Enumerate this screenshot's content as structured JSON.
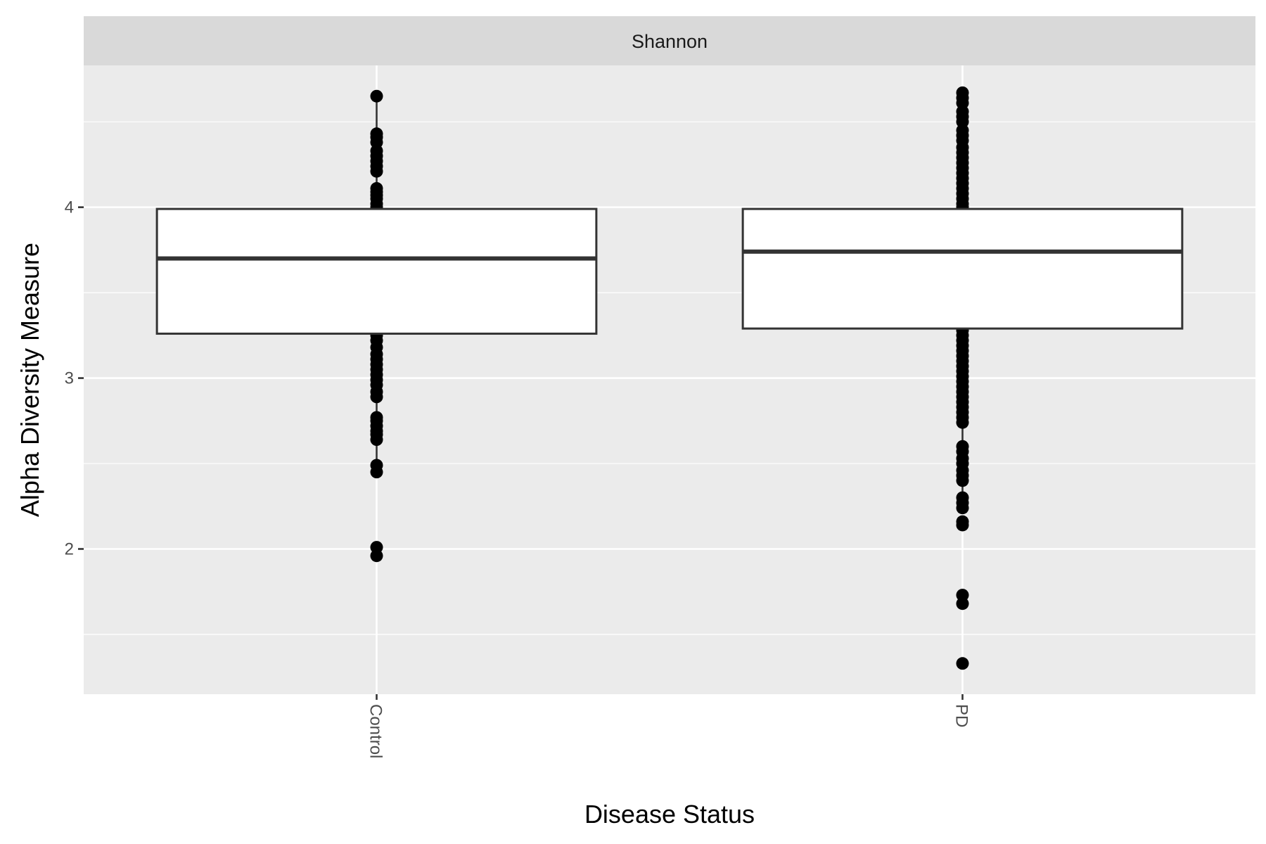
{
  "chart_data": {
    "type": "box",
    "facet_label": "Shannon",
    "xlabel": "Disease Status",
    "ylabel": "Alpha Diversity Measure",
    "categories": [
      "Control",
      "PD"
    ],
    "ylim": [
      1.15,
      4.83
    ],
    "y_major_ticks": [
      2,
      3,
      4
    ],
    "y_minor_ticks": [
      1.5,
      2.5,
      3.5,
      4.5
    ],
    "grid": true,
    "boxes": [
      {
        "category": "Control",
        "q1": 3.26,
        "median": 3.7,
        "q3": 3.99,
        "whisker_low": 2.45,
        "whisker_high": 4.65,
        "points": [
          4.65,
          4.43,
          4.41,
          4.38,
          4.33,
          4.3,
          4.27,
          4.24,
          4.21,
          4.11,
          4.09,
          4.07,
          4.05,
          4.02,
          4.0,
          3.25,
          3.22,
          3.18,
          3.14,
          3.11,
          3.08,
          3.05,
          3.02,
          2.99,
          2.96,
          2.92,
          2.89,
          2.77,
          2.75,
          2.72,
          2.69,
          2.67,
          2.64,
          2.49,
          2.45,
          2.01,
          1.96
        ]
      },
      {
        "category": "PD",
        "q1": 3.29,
        "median": 3.74,
        "q3": 3.99,
        "whisker_low": 2.23,
        "whisker_high": 4.67,
        "points": [
          4.67,
          4.64,
          4.61,
          4.56,
          4.53,
          4.5,
          4.45,
          4.42,
          4.39,
          4.35,
          4.32,
          4.29,
          4.26,
          4.23,
          4.2,
          4.17,
          4.14,
          4.11,
          4.08,
          4.05,
          4.02,
          4.0,
          3.28,
          3.25,
          3.22,
          3.19,
          3.16,
          3.13,
          3.1,
          3.07,
          3.04,
          3.01,
          2.98,
          2.95,
          2.92,
          2.89,
          2.86,
          2.83,
          2.8,
          2.77,
          2.74,
          2.6,
          2.57,
          2.53,
          2.5,
          2.46,
          2.43,
          2.4,
          2.3,
          2.27,
          2.24,
          2.16,
          2.14,
          1.73,
          1.68,
          1.33
        ]
      }
    ]
  }
}
